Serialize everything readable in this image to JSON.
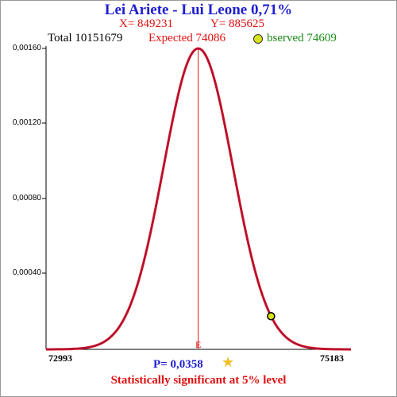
{
  "header": {
    "title": "Lei Ariete - Lui Leone  0,71%",
    "x_label": "X= 849231",
    "y_label": "Y= 885625",
    "total": "Total  10151679",
    "expected": "Expected  74086",
    "observed": "bserved  74609"
  },
  "footer": {
    "p_value": "P= 0,0358",
    "significance": "Statistically significant at 5% level",
    "star_icon": "star-icon"
  },
  "chart_data": {
    "type": "line",
    "title": "Lei Ariete - Lui Leone  0,71%",
    "xlim": [
      72993,
      75183
    ],
    "ylim": [
      0,
      0.0016
    ],
    "x_tick_labels": [
      "72993",
      "75183"
    ],
    "y_tick_labels": [
      "0,00040",
      "0,00080",
      "0,00120",
      "0,00160"
    ],
    "y_ticks": [
      0.0004,
      0.0008,
      0.0012,
      0.0016
    ],
    "distribution": {
      "mean": 74086,
      "sd": 249,
      "peak": 0.0016
    },
    "expected_marker": {
      "x": 74086,
      "label": "E"
    },
    "observed_point": {
      "x": 74609
    },
    "colors": {
      "curve": "#e01010",
      "curve_inner": "#2020c0",
      "marker": "#e01010",
      "observed": "#d9e21a"
    }
  }
}
